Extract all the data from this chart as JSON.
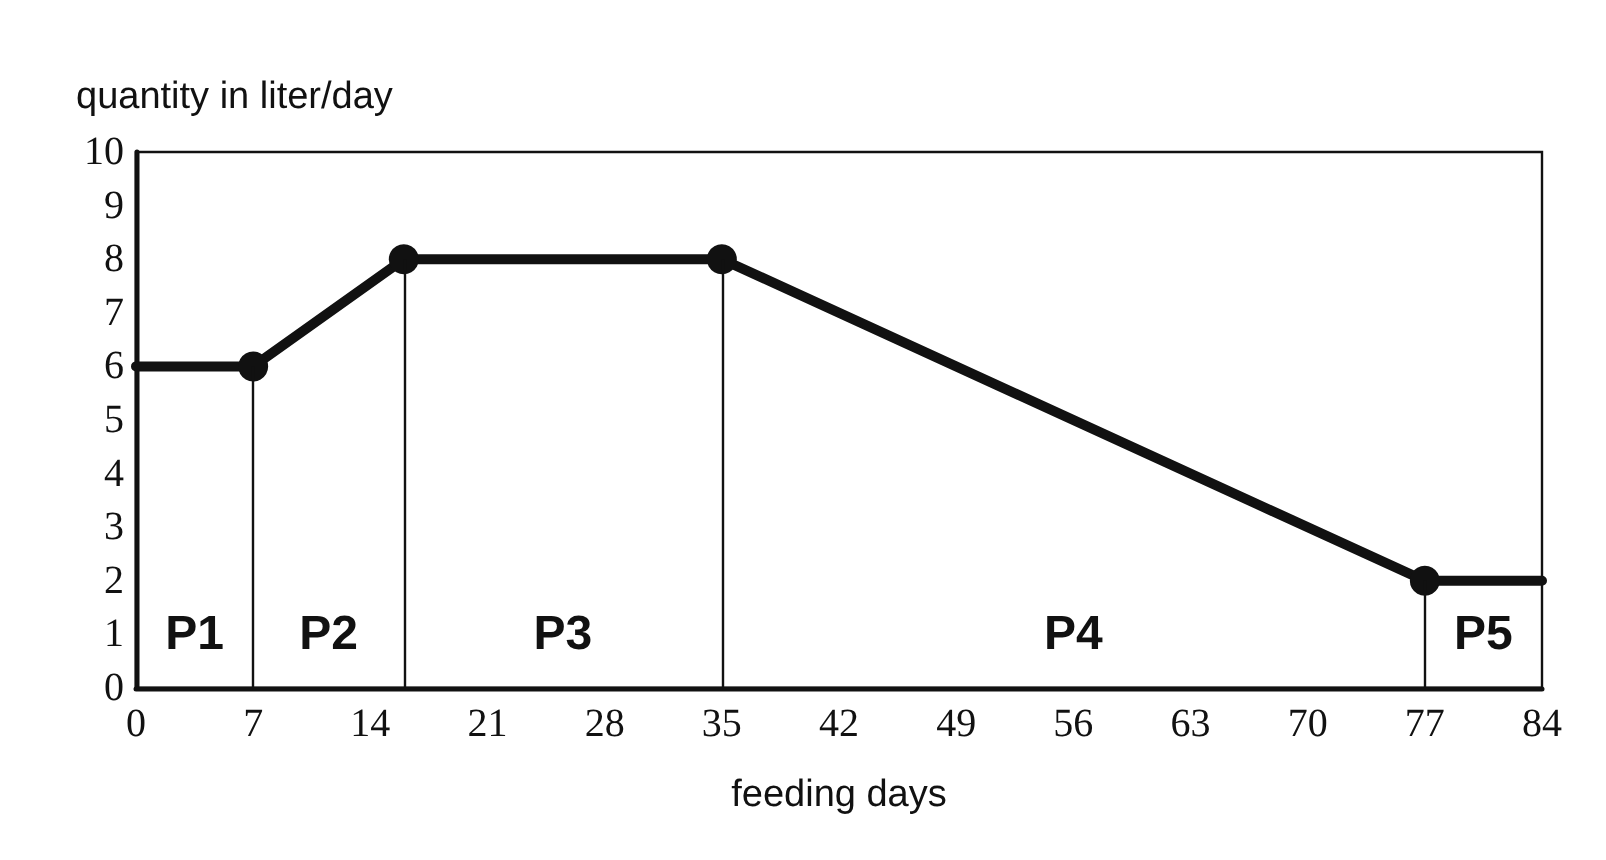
{
  "chart_data": {
    "type": "line",
    "xlabel": "feeding days",
    "ylabel": "quantity in liter/day",
    "x": [
      0,
      7,
      16,
      35,
      77,
      84
    ],
    "series": [
      {
        "color": "#111111",
        "values": [
          6,
          6,
          8,
          8,
          2,
          2
        ]
      }
    ],
    "xlim": [
      0,
      84
    ],
    "xticks": [
      0,
      7,
      14,
      21,
      28,
      35,
      42,
      49,
      56,
      63,
      70,
      77,
      84
    ],
    "ylim": [
      0,
      10
    ],
    "yticks": [
      0,
      1,
      2,
      3,
      4,
      5,
      6,
      7,
      8,
      9,
      10
    ],
    "ref_lines": [
      {
        "axis": "x",
        "value": 7,
        "color": "#111111"
      },
      {
        "axis": "x",
        "value": 16,
        "color": "#111111"
      },
      {
        "axis": "x",
        "value": 35,
        "color": "#111111"
      },
      {
        "axis": "x",
        "value": 77,
        "color": "#111111"
      }
    ],
    "annotations": [
      "P1",
      "P2",
      "P3",
      "P4",
      "P5"
    ],
    "grid": false,
    "marker": "circle",
    "line_style": "solid"
  }
}
